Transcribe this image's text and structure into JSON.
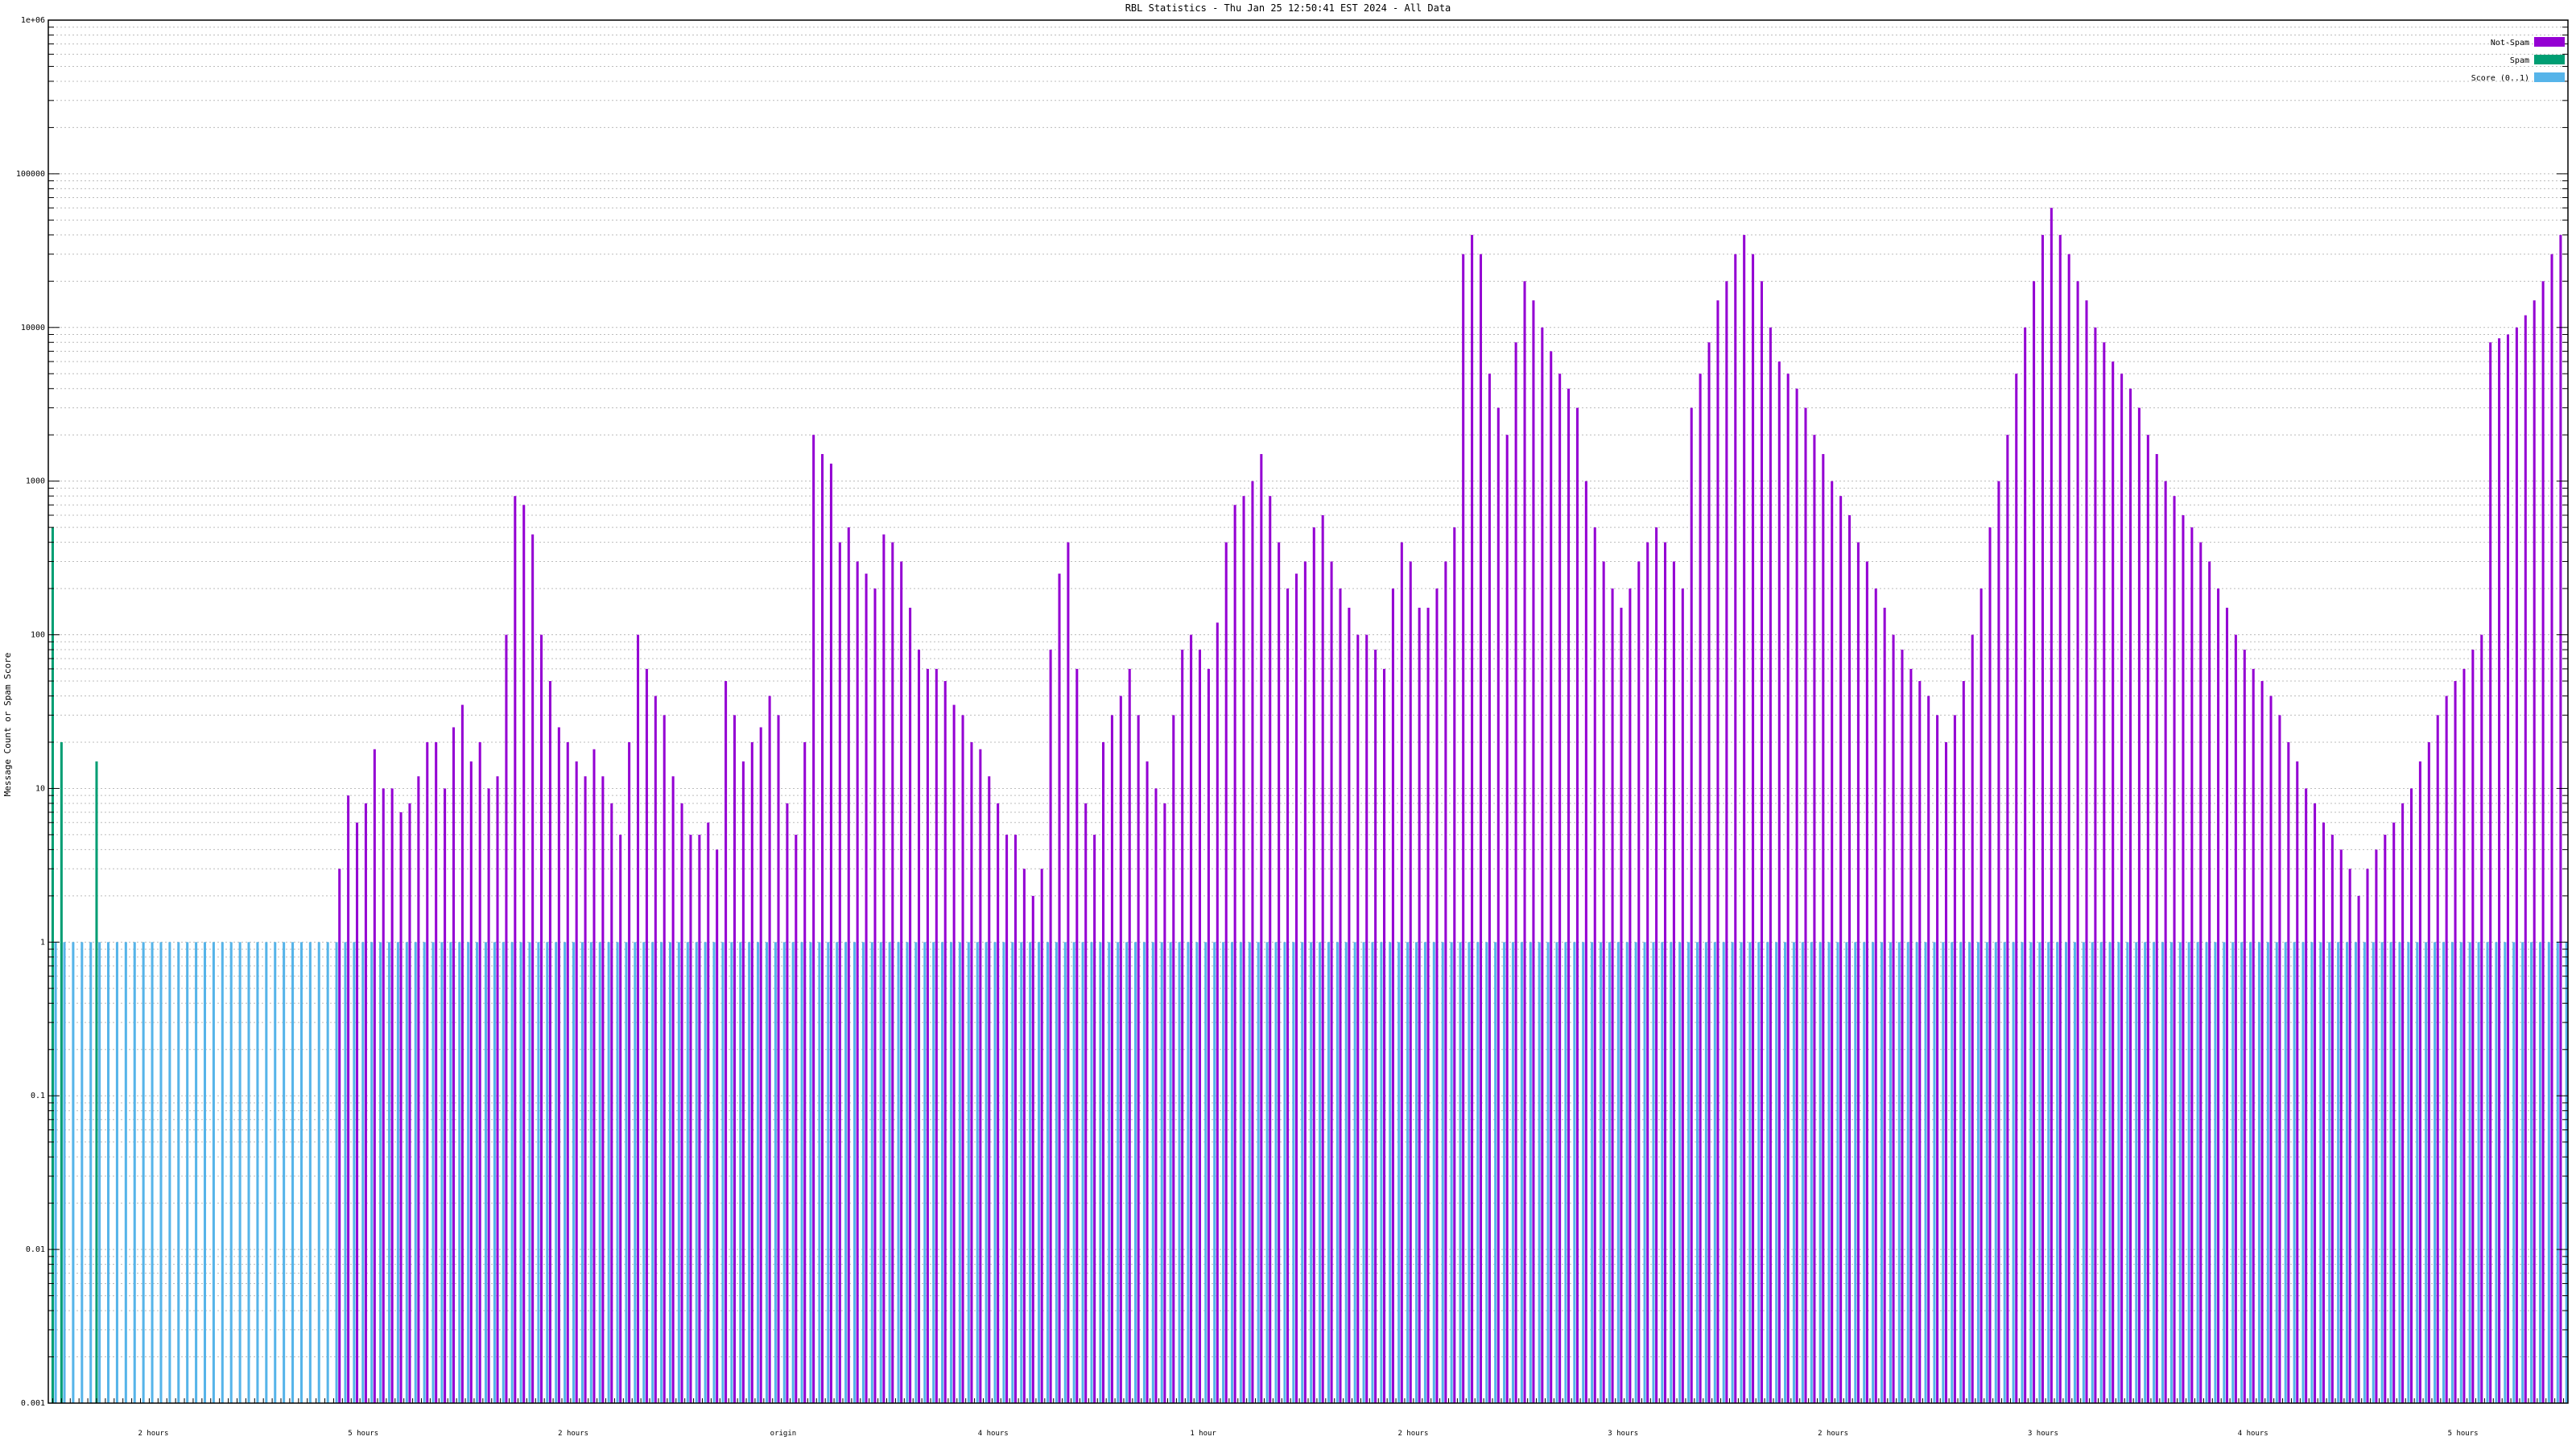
{
  "chart_data": {
    "type": "bar",
    "title": "RBL Statistics - Thu Jan 25 12:50:41 EST 2024 - All Data",
    "ylabel": "Message Count or Spam Score",
    "yscale": "log",
    "ylim": [
      0.001,
      1000000
    ],
    "ytick_labels": [
      "0.001",
      "0.01",
      "0.1",
      "1",
      "10",
      "100",
      "1000",
      "10000",
      "100000",
      "1e+06"
    ],
    "grid": true,
    "legend_position": "top-right",
    "legend": [
      {
        "name": "Not-Spam",
        "color": "#9400d3"
      },
      {
        "name": "Spam",
        "color": "#009e73"
      },
      {
        "name": "Score (0..1)",
        "color": "#56b4e9"
      }
    ],
    "category_labels": [
      "2 hours",
      "5 hours",
      "2 hours",
      "origin",
      "4 hours",
      "1 hour",
      "2 hours",
      "3 hours",
      "2 hours",
      "3 hours",
      "4 hours",
      "5 hours"
    ],
    "series": [
      {
        "name": "Not-Spam",
        "values": [
          0,
          0,
          0,
          0,
          0,
          0,
          0,
          0,
          0,
          0,
          0,
          0,
          0,
          0,
          0,
          0,
          0,
          0,
          0,
          0,
          0,
          0,
          0,
          0,
          0,
          0,
          0,
          0,
          0,
          0,
          0,
          0,
          0,
          3,
          9,
          6,
          8,
          18,
          10,
          10,
          7,
          8,
          12,
          20,
          20,
          10,
          25,
          35,
          15,
          20,
          10,
          12,
          100,
          800,
          700,
          450,
          100,
          50,
          25,
          20,
          15,
          12,
          18,
          12,
          8,
          5,
          20,
          100,
          60,
          40,
          30,
          12,
          8,
          5,
          5,
          6,
          4,
          50,
          30,
          15,
          20,
          25,
          40,
          30,
          8,
          5,
          20,
          2000,
          1500,
          1300,
          400,
          500,
          300,
          250,
          200,
          450,
          400,
          300,
          150,
          80,
          60,
          60,
          50,
          35,
          30,
          20,
          18,
          12,
          8,
          5,
          5,
          3,
          2,
          3,
          80,
          250,
          400,
          60,
          8,
          5,
          20,
          30,
          40,
          60,
          30,
          15,
          10,
          8,
          30,
          80,
          100,
          80,
          60,
          120,
          400,
          700,
          800,
          1000,
          1500,
          800,
          400,
          200,
          250,
          300,
          500,
          600,
          300,
          200,
          150,
          100,
          100,
          80,
          60,
          200,
          400,
          300,
          150,
          150,
          200,
          300,
          500,
          30000,
          40000,
          30000,
          5000,
          3000,
          2000,
          8000,
          20000,
          15000,
          10000,
          7000,
          5000,
          4000,
          3000,
          1000,
          500,
          300,
          200,
          150,
          200,
          300,
          400,
          500,
          400,
          300,
          200,
          3000,
          5000,
          8000,
          15000,
          20000,
          30000,
          40000,
          30000,
          20000,
          10000,
          6000,
          5000,
          4000,
          3000,
          2000,
          1500,
          1000,
          800,
          600,
          400,
          300,
          200,
          150,
          100,
          80,
          60,
          50,
          40,
          30,
          20,
          30,
          50,
          100,
          200,
          500,
          1000,
          2000,
          5000,
          10000,
          20000,
          40000,
          60000,
          40000,
          30000,
          20000,
          15000,
          10000,
          8000,
          6000,
          5000,
          4000,
          3000,
          2000,
          1500,
          1000,
          800,
          600,
          500,
          400,
          300,
          200,
          150,
          100,
          80,
          60,
          50,
          40,
          30,
          20,
          15,
          10,
          8,
          6,
          5,
          4,
          3,
          2,
          3,
          4,
          5,
          6,
          8,
          10,
          15,
          20,
          30,
          40,
          50,
          60,
          80,
          100,
          8000,
          8500,
          9000,
          10000,
          12000,
          15000,
          20000,
          30000,
          40000
        ]
      },
      {
        "name": "Spam",
        "values": [
          500,
          20,
          0,
          0,
          0,
          15,
          0,
          0,
          0,
          0,
          0,
          0,
          0,
          0,
          0,
          0,
          0,
          0,
          0,
          0,
          0,
          0,
          0,
          0,
          0,
          0,
          0,
          0,
          0,
          0,
          0,
          0,
          0,
          0,
          0,
          0,
          0,
          0,
          0,
          0,
          0,
          0,
          0,
          0,
          0,
          0,
          0,
          0,
          0,
          0,
          0,
          0,
          0,
          0,
          0,
          0,
          0,
          0,
          0,
          0,
          0,
          0,
          0,
          0,
          0,
          0,
          0,
          0,
          0,
          0,
          0,
          0,
          0,
          0,
          0,
          0,
          0,
          0,
          0,
          0,
          0,
          0,
          0,
          0,
          0,
          0,
          0,
          0,
          0,
          0,
          0,
          0,
          0,
          0,
          0,
          0,
          0,
          0,
          0,
          0,
          0,
          0,
          0,
          0,
          0,
          0,
          0,
          0,
          0,
          0,
          0,
          0,
          0,
          0,
          0,
          0,
          0,
          0,
          0,
          0,
          0,
          0,
          0,
          0,
          0,
          0,
          0,
          0,
          0,
          0,
          0,
          0,
          0,
          0,
          0,
          0,
          0,
          0,
          0,
          0,
          0,
          0,
          0,
          0,
          0,
          0,
          0,
          0,
          0,
          0,
          0,
          0,
          0,
          0,
          0,
          0,
          0,
          0,
          0,
          0,
          0,
          0,
          0,
          0,
          0,
          0,
          0,
          0,
          0,
          0,
          0,
          0,
          0,
          0,
          0,
          0,
          0,
          0,
          0,
          0,
          0,
          0,
          0,
          0,
          0,
          0,
          0,
          0,
          0,
          0,
          0,
          0,
          0,
          0,
          0,
          0,
          0,
          0,
          0,
          0,
          0,
          0,
          0,
          0,
          0,
          0,
          0,
          0,
          0,
          0,
          0,
          0,
          0,
          0,
          0,
          0,
          0,
          0,
          0,
          0,
          0,
          0,
          0,
          0,
          0,
          0,
          0,
          0,
          0,
          0,
          0,
          0,
          0,
          0,
          0,
          0,
          0,
          0,
          0,
          0,
          0,
          0,
          0,
          0,
          0,
          0,
          0,
          0,
          0,
          0,
          0,
          0,
          0,
          0,
          0,
          0,
          0,
          0,
          0,
          0,
          0,
          0,
          0,
          0,
          0,
          0,
          0,
          0,
          0,
          0,
          0,
          0,
          0,
          0,
          0,
          0,
          0,
          0,
          0,
          0,
          0,
          0,
          0,
          0,
          0,
          0,
          0,
          0,
          0,
          0,
          0,
          0,
          0,
          0,
          0,
          0,
          0,
          0,
          0,
          0,
          0,
          0,
          0,
          0,
          0,
          0
        ]
      },
      {
        "name": "Score (0..1)",
        "values": [
          1,
          1,
          1,
          1,
          1,
          1,
          1,
          1,
          1,
          1,
          1,
          1,
          1,
          1,
          1,
          1,
          1,
          1,
          1,
          1,
          1,
          1,
          1,
          1,
          1,
          1,
          1,
          1,
          1,
          1,
          1,
          1,
          1,
          1,
          1,
          1,
          1,
          1,
          1,
          1,
          1,
          1,
          1,
          1,
          1,
          1,
          1,
          1,
          1,
          1,
          1,
          1,
          1,
          1,
          1,
          1,
          1,
          1,
          1,
          1,
          1,
          1,
          1,
          1,
          1,
          1,
          1,
          1,
          1,
          1,
          1,
          1,
          1,
          1,
          1,
          1,
          1,
          1,
          1,
          1,
          1,
          1,
          1,
          1,
          1,
          1,
          1,
          1,
          1,
          1,
          1,
          1,
          1,
          1,
          1,
          1,
          1,
          1,
          1,
          1,
          1,
          1,
          1,
          1,
          1,
          1,
          1,
          1,
          1,
          1,
          1,
          1,
          1,
          1,
          1,
          1,
          1,
          1,
          1,
          1,
          1,
          1,
          1,
          1,
          1,
          1,
          1,
          1,
          1,
          1,
          1,
          1,
          1,
          1,
          1,
          1,
          1,
          1,
          1,
          1,
          1,
          1,
          1,
          1,
          1,
          1,
          1,
          1,
          1,
          1,
          1,
          1,
          1,
          1,
          1,
          1,
          1,
          1,
          1,
          1,
          1,
          1,
          1,
          1,
          1,
          1,
          1,
          1,
          1,
          1,
          1,
          1,
          1,
          1,
          1,
          1,
          1,
          1,
          1,
          1,
          1,
          1,
          1,
          1,
          1,
          1,
          1,
          1,
          1,
          1,
          1,
          1,
          1,
          1,
          1,
          1,
          1,
          1,
          1,
          1,
          1,
          1,
          1,
          1,
          1,
          1,
          1,
          1,
          1,
          1,
          1,
          1,
          1,
          1,
          1,
          1,
          1,
          1,
          1,
          1,
          1,
          1,
          1,
          1,
          1,
          1,
          1,
          1,
          1,
          1,
          1,
          1,
          1,
          1,
          1,
          1,
          1,
          1,
          1,
          1,
          1,
          1,
          1,
          1,
          1,
          1,
          1,
          1,
          1,
          1,
          1,
          1,
          1,
          1,
          1,
          1,
          1,
          1,
          1,
          1,
          1,
          1,
          1,
          1,
          1,
          1,
          1,
          1,
          1,
          1,
          1,
          1,
          1,
          1,
          1,
          1,
          1,
          1,
          1,
          1,
          1,
          1,
          1,
          1,
          1,
          1,
          1,
          1,
          1,
          1,
          1,
          1,
          1,
          1,
          1,
          1,
          1,
          1,
          1,
          1,
          1,
          1,
          1,
          1,
          1,
          1,
          1,
          1,
          1,
          1,
          1,
          1,
          1,
          1,
          1,
          1,
          1,
          1
        ]
      }
    ]
  }
}
